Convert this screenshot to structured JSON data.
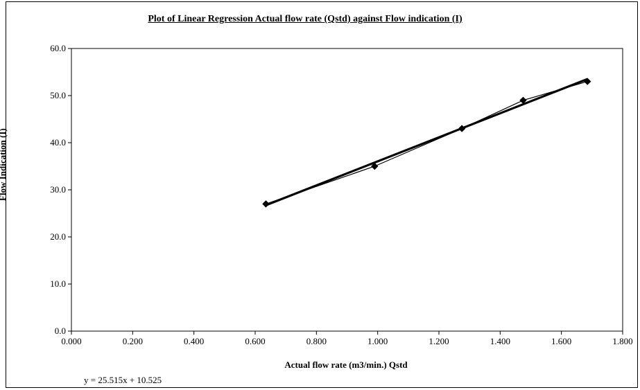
{
  "chart_data": {
    "type": "scatter",
    "title": "Plot of Linear Regression Actual flow rate (Qstd) against Flow indication (I)",
    "xlabel": "Actual flow rate (m3/min.) Qstd",
    "ylabel": "Flow Indication (I)",
    "xlim": [
      0,
      1.8
    ],
    "ylim": [
      0,
      60
    ],
    "xticks": [
      "0.000",
      "0.200",
      "0.400",
      "0.600",
      "0.800",
      "1.000",
      "1.200",
      "1.400",
      "1.600",
      "1.800"
    ],
    "yticks": [
      "0.0",
      "10.0",
      "20.0",
      "30.0",
      "40.0",
      "50.0",
      "60.0"
    ],
    "grid": false,
    "series": [
      {
        "x": [
          0.635,
          0.99,
          1.275,
          1.475,
          1.685
        ],
        "y": [
          27,
          35,
          43,
          49,
          53
        ],
        "marker": "diamond",
        "color": "#000000"
      }
    ],
    "trendline": {
      "slope": 25.515,
      "intercept": 10.525,
      "label": "y = 25.515x + 10.525",
      "color": "#000000"
    }
  }
}
